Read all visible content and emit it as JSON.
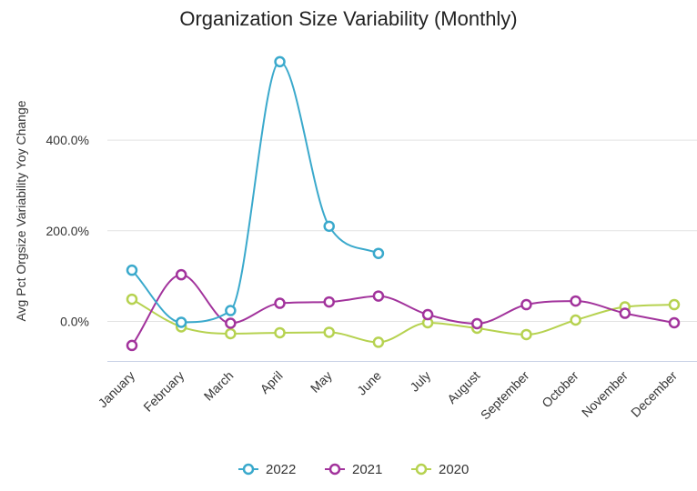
{
  "chart_data": {
    "type": "line",
    "title": "Organization Size Variability (Monthly)",
    "xlabel": "",
    "ylabel": "Avg Pct Orgsize Variability Yoy Change",
    "categories": [
      "January",
      "February",
      "March",
      "April",
      "May",
      "June",
      "July",
      "August",
      "September",
      "October",
      "November",
      "December"
    ],
    "y_ticks": [
      "0.0%",
      "200.0%",
      "400.0%"
    ],
    "ylim": [
      -85,
      580
    ],
    "grid": true,
    "legend": "bottom",
    "series": [
      {
        "name": "2022",
        "color": "#3aa9cc",
        "values": [
          113,
          -2,
          24,
          573,
          210,
          150,
          null,
          null,
          null,
          null,
          null,
          null
        ]
      },
      {
        "name": "2021",
        "color": "#a2339c",
        "values": [
          -53,
          103,
          -4,
          40,
          43,
          56,
          15,
          -5,
          37,
          45,
          18,
          -3
        ]
      },
      {
        "name": "2020",
        "color": "#b6d250",
        "values": [
          49,
          -12,
          -27,
          -25,
          -24,
          -46,
          -3,
          -15,
          -29,
          3,
          32,
          37
        ]
      }
    ]
  }
}
